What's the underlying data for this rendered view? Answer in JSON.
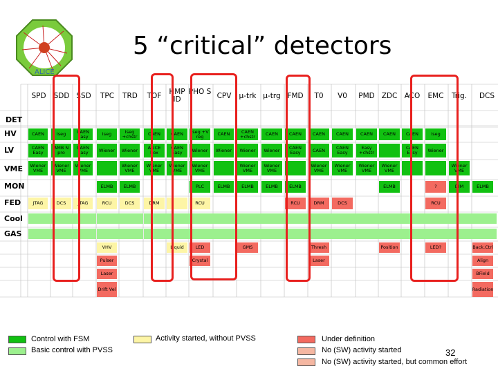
{
  "title": "5 “critical” detectors",
  "logo_text": "ALICE",
  "page_number": "32",
  "colors": {
    "green": "#11c111",
    "light_green": "#9cf08e",
    "yellow": "#fdf5a6",
    "red": "#f36a60",
    "salmon": "#f5b7a2",
    "highlight": "#e8201e"
  },
  "columns": [
    "SPD",
    "SDD",
    "SSD",
    "TPC",
    "TRD",
    "TOF",
    "HMP ID",
    "PHO S",
    "CPV",
    "μ-trk",
    "μ-trg",
    "FMD",
    "T0",
    "V0",
    "PMD",
    "ZDC",
    "ACO",
    "EMC",
    "Trig.",
    "DCS"
  ],
  "row_det": "DET",
  "rows": [
    {
      "label": "HV",
      "cells": [
        {
          "t": "CAEN",
          "c": "green"
        },
        {
          "t": "Iseg",
          "c": "green"
        },
        {
          "t": "CAEN Easy",
          "c": "green"
        },
        {
          "t": "Iseg",
          "c": "green"
        },
        {
          "t": "Iseg +chstr",
          "c": "green"
        },
        {
          "t": "CAEN",
          "c": "green"
        },
        {
          "t": "CAEN",
          "c": "green"
        },
        {
          "t": "Iseg +V reg",
          "c": "green"
        },
        {
          "t": "CAEN",
          "c": "green"
        },
        {
          "t": "CAEN +chstr",
          "c": "green"
        },
        {
          "t": "CAEN",
          "c": "green"
        },
        {
          "t": "CAEN",
          "c": "green"
        },
        {
          "t": "CAEN",
          "c": "green"
        },
        {
          "t": "CAEN",
          "c": "green"
        },
        {
          "t": "CAEN",
          "c": "green"
        },
        {
          "t": "CAEN",
          "c": "green"
        },
        {
          "t": "CAEN",
          "c": "green"
        },
        {
          "t": "Iseg",
          "c": "green"
        },
        {
          "t": "",
          "c": ""
        },
        {
          "t": "",
          "c": ""
        }
      ]
    },
    {
      "label": "LV",
      "cells": [
        {
          "t": "CAEN Easy",
          "c": "green"
        },
        {
          "t": "AMB N pro",
          "c": "green"
        },
        {
          "t": "CAEN Easy",
          "c": "green"
        },
        {
          "t": "Wiener",
          "c": "green"
        },
        {
          "t": "Wiener",
          "c": "green"
        },
        {
          "t": "ALICE box",
          "c": "green"
        },
        {
          "t": "CAEN Easy",
          "c": "green"
        },
        {
          "t": "Wiener",
          "c": "green"
        },
        {
          "t": "Wiener",
          "c": "green"
        },
        {
          "t": "Wiener",
          "c": "green"
        },
        {
          "t": "Wiener",
          "c": "green"
        },
        {
          "t": "CAEN Easy",
          "c": "green"
        },
        {
          "t": "CAEN",
          "c": "green"
        },
        {
          "t": "CAEN Easy",
          "c": "green"
        },
        {
          "t": "Easy +chstr",
          "c": "green"
        },
        {
          "t": "",
          "c": "green"
        },
        {
          "t": "CAEN Easy",
          "c": "green"
        },
        {
          "t": "Wiener",
          "c": "green"
        },
        {
          "t": "",
          "c": ""
        },
        {
          "t": "",
          "c": ""
        }
      ]
    },
    {
      "label": "VME",
      "cells": [
        {
          "t": "Wiener VME",
          "c": "green"
        },
        {
          "t": "Wiener VME",
          "c": "green"
        },
        {
          "t": "Wiener VME",
          "c": "green"
        },
        {
          "t": "",
          "c": "green"
        },
        {
          "t": "Wiener VME",
          "c": "green"
        },
        {
          "t": "Wiener VME",
          "c": "green"
        },
        {
          "t": "Wiener VME",
          "c": "green"
        },
        {
          "t": "Wiener VME",
          "c": "green"
        },
        {
          "t": "",
          "c": "green"
        },
        {
          "t": "Wiener VME",
          "c": "green"
        },
        {
          "t": "Wiener VME",
          "c": "green"
        },
        {
          "t": "",
          "c": "green"
        },
        {
          "t": "Wiener VME",
          "c": "green"
        },
        {
          "t": "Wiener VME",
          "c": "green"
        },
        {
          "t": "Wiener VME",
          "c": "green"
        },
        {
          "t": "Wiener VME",
          "c": "green"
        },
        {
          "t": "",
          "c": "green"
        },
        {
          "t": "",
          "c": "green"
        },
        {
          "t": "Wiener VME",
          "c": "green"
        },
        {
          "t": "",
          "c": ""
        }
      ]
    },
    {
      "label": "MON",
      "cells": [
        {
          "t": "",
          "c": ""
        },
        {
          "t": "",
          "c": ""
        },
        {
          "t": "",
          "c": ""
        },
        {
          "t": "ELMB",
          "c": "green"
        },
        {
          "t": "ELMB",
          "c": "green"
        },
        {
          "t": "",
          "c": ""
        },
        {
          "t": "",
          "c": ""
        },
        {
          "t": "PLC",
          "c": "green"
        },
        {
          "t": "ELMB",
          "c": "green"
        },
        {
          "t": "ELMB",
          "c": "green"
        },
        {
          "t": "ELMB",
          "c": "green"
        },
        {
          "t": "ELMB",
          "c": "green"
        },
        {
          "t": "",
          "c": ""
        },
        {
          "t": "",
          "c": ""
        },
        {
          "t": "",
          "c": ""
        },
        {
          "t": "ELMB",
          "c": "green"
        },
        {
          "t": "",
          "c": ""
        },
        {
          "t": "?",
          "c": "red"
        },
        {
          "t": "DIM",
          "c": "green"
        },
        {
          "t": "ELMB",
          "c": "green"
        }
      ]
    },
    {
      "label": "FED",
      "cells": [
        {
          "t": "JTAG",
          "c": "yellow"
        },
        {
          "t": "DCS",
          "c": "yellow"
        },
        {
          "t": "JTAG",
          "c": "yellow"
        },
        {
          "t": "RCU",
          "c": "yellow"
        },
        {
          "t": "DCS",
          "c": "yellow"
        },
        {
          "t": "DRM",
          "c": "yellow"
        },
        {
          "t": "",
          "c": "yellow"
        },
        {
          "t": "RCU",
          "c": "yellow"
        },
        {
          "t": "",
          "c": ""
        },
        {
          "t": "",
          "c": ""
        },
        {
          "t": "",
          "c": ""
        },
        {
          "t": "RCU",
          "c": "red"
        },
        {
          "t": "DRM",
          "c": "red"
        },
        {
          "t": "DCS",
          "c": "red"
        },
        {
          "t": "",
          "c": ""
        },
        {
          "t": "",
          "c": ""
        },
        {
          "t": "",
          "c": ""
        },
        {
          "t": "RCU",
          "c": "red"
        },
        {
          "t": "",
          "c": ""
        },
        {
          "t": "",
          "c": ""
        }
      ]
    },
    {
      "label": "Cool",
      "cells": [
        {
          "t": "",
          "c": "light_green"
        },
        {
          "t": "",
          "c": "light_green"
        },
        {
          "t": "",
          "c": "light_green"
        },
        {
          "t": "",
          "c": "light_green"
        },
        {
          "t": "",
          "c": "light_green"
        },
        {
          "t": "",
          "c": "light_green"
        },
        {
          "t": "",
          "c": "light_green"
        },
        {
          "t": "",
          "c": "light_green"
        },
        {
          "t": "",
          "c": "light_green"
        },
        {
          "t": "",
          "c": "light_green"
        },
        {
          "t": "",
          "c": "light_green"
        },
        {
          "t": "",
          "c": "light_green"
        },
        {
          "t": "",
          "c": "light_green"
        },
        {
          "t": "",
          "c": "light_green"
        },
        {
          "t": "",
          "c": "light_green"
        },
        {
          "t": "",
          "c": "light_green"
        },
        {
          "t": "",
          "c": "light_green"
        },
        {
          "t": "",
          "c": "light_green"
        },
        {
          "t": "",
          "c": "light_green"
        },
        {
          "t": "",
          "c": "light_green"
        }
      ]
    },
    {
      "label": "GAS",
      "cells": [
        {
          "t": "",
          "c": "light_green"
        },
        {
          "t": "",
          "c": "light_green"
        },
        {
          "t": "",
          "c": "light_green"
        },
        {
          "t": "",
          "c": "light_green"
        },
        {
          "t": "",
          "c": "light_green"
        },
        {
          "t": "",
          "c": "light_green"
        },
        {
          "t": "",
          "c": "light_green"
        },
        {
          "t": "",
          "c": "light_green"
        },
        {
          "t": "",
          "c": "light_green"
        },
        {
          "t": "",
          "c": "light_green"
        },
        {
          "t": "",
          "c": "light_green"
        },
        {
          "t": "",
          "c": "light_green"
        },
        {
          "t": "",
          "c": "light_green"
        },
        {
          "t": "",
          "c": "light_green"
        },
        {
          "t": "",
          "c": "light_green"
        },
        {
          "t": "",
          "c": "light_green"
        },
        {
          "t": "",
          "c": "light_green"
        },
        {
          "t": "",
          "c": "light_green"
        },
        {
          "t": "",
          "c": "light_green"
        },
        {
          "t": "",
          "c": "light_green"
        }
      ]
    },
    {
      "label": "",
      "cells": [
        {
          "t": "",
          "c": ""
        },
        {
          "t": "",
          "c": ""
        },
        {
          "t": "",
          "c": ""
        },
        {
          "t": "VHV",
          "c": "yellow"
        },
        {
          "t": "",
          "c": ""
        },
        {
          "t": "",
          "c": ""
        },
        {
          "t": "Liquid",
          "c": "yellow"
        },
        {
          "t": "LED",
          "c": "red"
        },
        {
          "t": "",
          "c": ""
        },
        {
          "t": "GMS",
          "c": "red"
        },
        {
          "t": "",
          "c": ""
        },
        {
          "t": "",
          "c": ""
        },
        {
          "t": "Thresh",
          "c": "red"
        },
        {
          "t": "",
          "c": ""
        },
        {
          "t": "",
          "c": ""
        },
        {
          "t": "Position",
          "c": "red"
        },
        {
          "t": "",
          "c": ""
        },
        {
          "t": "LED?",
          "c": "red"
        },
        {
          "t": "",
          "c": ""
        },
        {
          "t": "Back.Ctrl",
          "c": "red"
        }
      ]
    },
    {
      "label": "",
      "cells": [
        {
          "t": "",
          "c": ""
        },
        {
          "t": "",
          "c": ""
        },
        {
          "t": "",
          "c": ""
        },
        {
          "t": "Pulser",
          "c": "red"
        },
        {
          "t": "",
          "c": ""
        },
        {
          "t": "",
          "c": ""
        },
        {
          "t": "",
          "c": ""
        },
        {
          "t": "Crystal",
          "c": "red"
        },
        {
          "t": "",
          "c": ""
        },
        {
          "t": "",
          "c": ""
        },
        {
          "t": "",
          "c": ""
        },
        {
          "t": "",
          "c": ""
        },
        {
          "t": "Laser",
          "c": "red"
        },
        {
          "t": "",
          "c": ""
        },
        {
          "t": "",
          "c": ""
        },
        {
          "t": "",
          "c": ""
        },
        {
          "t": "",
          "c": ""
        },
        {
          "t": "",
          "c": ""
        },
        {
          "t": "",
          "c": ""
        },
        {
          "t": "Align",
          "c": "red"
        }
      ]
    },
    {
      "label": "",
      "cells": [
        {
          "t": "",
          "c": ""
        },
        {
          "t": "",
          "c": ""
        },
        {
          "t": "",
          "c": ""
        },
        {
          "t": "Laser",
          "c": "red"
        },
        {
          "t": "",
          "c": ""
        },
        {
          "t": "",
          "c": ""
        },
        {
          "t": "",
          "c": ""
        },
        {
          "t": "",
          "c": ""
        },
        {
          "t": "",
          "c": ""
        },
        {
          "t": "",
          "c": ""
        },
        {
          "t": "",
          "c": ""
        },
        {
          "t": "",
          "c": ""
        },
        {
          "t": "",
          "c": ""
        },
        {
          "t": "",
          "c": ""
        },
        {
          "t": "",
          "c": ""
        },
        {
          "t": "",
          "c": ""
        },
        {
          "t": "",
          "c": ""
        },
        {
          "t": "",
          "c": ""
        },
        {
          "t": "",
          "c": ""
        },
        {
          "t": "BField",
          "c": "red"
        }
      ]
    },
    {
      "label": "",
      "cells": [
        {
          "t": "",
          "c": ""
        },
        {
          "t": "",
          "c": ""
        },
        {
          "t": "",
          "c": ""
        },
        {
          "t": "Drift Vel",
          "c": "red"
        },
        {
          "t": "",
          "c": ""
        },
        {
          "t": "",
          "c": ""
        },
        {
          "t": "",
          "c": ""
        },
        {
          "t": "",
          "c": ""
        },
        {
          "t": "",
          "c": ""
        },
        {
          "t": "",
          "c": ""
        },
        {
          "t": "",
          "c": ""
        },
        {
          "t": "",
          "c": ""
        },
        {
          "t": "",
          "c": ""
        },
        {
          "t": "",
          "c": ""
        },
        {
          "t": "",
          "c": ""
        },
        {
          "t": "",
          "c": ""
        },
        {
          "t": "",
          "c": ""
        },
        {
          "t": "",
          "c": ""
        },
        {
          "t": "",
          "c": ""
        },
        {
          "t": "Radiation",
          "c": "red"
        }
      ]
    }
  ],
  "legend": [
    {
      "label": "Control with FSM",
      "c": "green"
    },
    {
      "label": "Basic control with PVSS",
      "c": "light_green"
    },
    {
      "label": "Activity started, without PVSS",
      "c": "yellow"
    },
    {
      "label": "Under definition",
      "c": "red"
    },
    {
      "label": "No (SW) activity started",
      "c": "salmon"
    },
    {
      "label": "No (SW) activity started, but common effort",
      "c": "salmon"
    }
  ]
}
